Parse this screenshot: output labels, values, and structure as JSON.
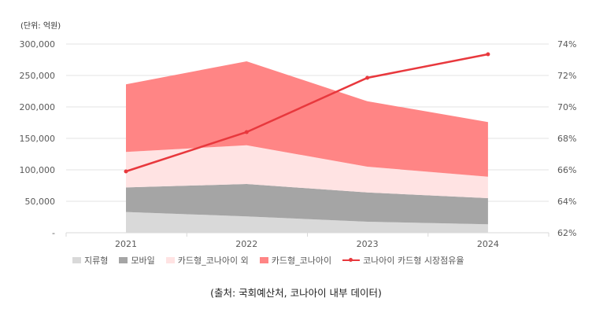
{
  "chart_data": {
    "type": "area",
    "stacked": true,
    "unit_label": "(단위: 억원)",
    "categories": [
      "2021",
      "2022",
      "2023",
      "2024"
    ],
    "series": [
      {
        "name": "지류형",
        "values": [
          33000,
          26000,
          17500,
          13500
        ],
        "color": "#d9d9d9"
      },
      {
        "name": "모바일",
        "values": [
          39000,
          51500,
          46500,
          41500
        ],
        "color": "#a5a5a5"
      },
      {
        "name": "카드형_코나아이 외",
        "values": [
          56500,
          61500,
          41000,
          34000
        ],
        "color": "#ffe3e3"
      },
      {
        "name": "카드형_코나아이",
        "values": [
          107500,
          133500,
          104000,
          87000
        ],
        "color": "#ff8585"
      }
    ],
    "line_series": {
      "name": "코나아이 카드형 시장점유율",
      "values": [
        65.9,
        68.4,
        71.85,
        73.35
      ],
      "color": "#e8383d",
      "axis": "right"
    },
    "y_left": {
      "range": [
        0,
        300000
      ],
      "ticks": [
        "-",
        "50,000",
        "100,000",
        "150,000",
        "200,000",
        "250,000",
        "300,000"
      ]
    },
    "y_right": {
      "range": [
        62,
        74
      ],
      "ticks": [
        "62%",
        "64%",
        "66%",
        "68%",
        "70%",
        "72%",
        "74%"
      ]
    },
    "grid": true,
    "legend": "bottom"
  },
  "source": "(출처: 국회예산처, 코나아이 내부 데이터)"
}
